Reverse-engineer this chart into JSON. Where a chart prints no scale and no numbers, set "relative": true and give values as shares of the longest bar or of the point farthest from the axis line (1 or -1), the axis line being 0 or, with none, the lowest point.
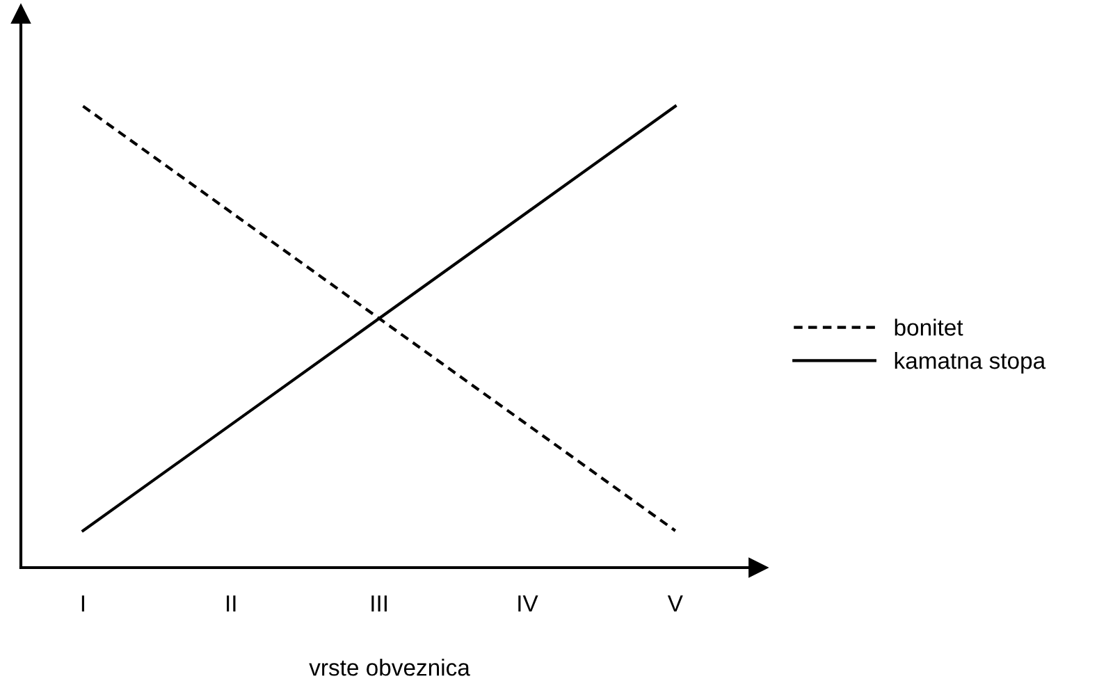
{
  "chart_data": {
    "type": "line",
    "relative": true,
    "xlabel": "vrste obveznica",
    "categories": [
      "I",
      "II",
      "III",
      "IV",
      "V"
    ],
    "series": [
      {
        "name": "bonitet",
        "color": "#000000",
        "line_style": "dashed",
        "values": [
          1,
          0.77,
          0.54,
          0.31,
          0.08
        ]
      },
      {
        "name": "kamatna stopa",
        "color": "#000000",
        "line_style": "solid",
        "values": [
          0.08,
          0.31,
          0.54,
          0.77,
          1
        ]
      }
    ],
    "legend": "right",
    "grid": false,
    "marker": "none"
  }
}
